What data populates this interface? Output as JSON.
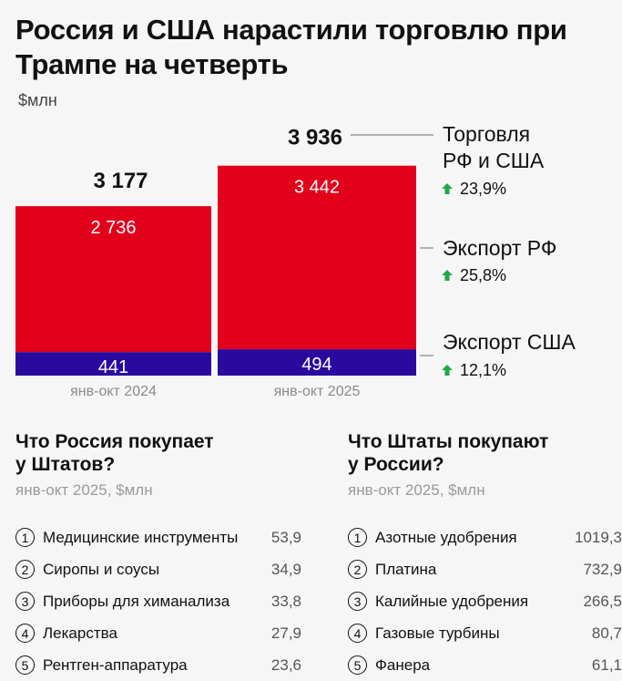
{
  "header": {
    "title": "Россия и США нарастили торговлю при Трампе на четверть",
    "unit": "$млн"
  },
  "chart_data": {
    "type": "bar",
    "stacked": true,
    "categories": [
      "янв-окт 2024",
      "янв-окт 2025"
    ],
    "totals": [
      3177,
      3936
    ],
    "total_labels": [
      "3 177",
      "3 936"
    ],
    "series": [
      {
        "name": "Экспорт РФ",
        "values": [
          2736,
          3442
        ],
        "labels": [
          "2 736",
          "3 442"
        ],
        "color": "#e2001a",
        "change": "25,8%"
      },
      {
        "name": "Экспорт США",
        "values": [
          441,
          494
        ],
        "labels": [
          "441",
          "494"
        ],
        "color": "#2a0a9e",
        "change": "12,1%"
      }
    ],
    "legend": [
      {
        "name": "Торговля РФ и США",
        "lines": [
          "Торговля",
          "РФ и США"
        ],
        "change": "23,9%"
      },
      {
        "name": "Экспорт РФ",
        "lines": [
          "Экспорт РФ"
        ],
        "change": "25,8%"
      },
      {
        "name": "Экспорт США",
        "lines": [
          "Экспорт США"
        ],
        "change": "12,1%"
      }
    ],
    "unit": "$млн",
    "ylim": [
      0,
      4200
    ],
    "arrow_color": "#1fa84a"
  },
  "tables": {
    "left": {
      "title_lines": [
        "Что Россия покупает",
        "у Штатов?"
      ],
      "subtitle": "янв-окт 2025, $млн",
      "rows": [
        {
          "n": "1",
          "name": "Медицинские инструменты",
          "value": "53,9"
        },
        {
          "n": "2",
          "name": "Сиропы и соусы",
          "value": "34,9"
        },
        {
          "n": "3",
          "name": "Приборы для химанализа",
          "value": "33,8"
        },
        {
          "n": "4",
          "name": "Лекарства",
          "value": "27,9"
        },
        {
          "n": "5",
          "name": "Рентген-аппаратура",
          "value": "23,6"
        }
      ]
    },
    "right": {
      "title_lines": [
        "Что Штаты покупают",
        "у России?"
      ],
      "subtitle": "янв-окт 2025, $млн",
      "rows": [
        {
          "n": "1",
          "name": "Азотные удобрения",
          "value": "1019,3"
        },
        {
          "n": "2",
          "name": "Платина",
          "value": "732,9"
        },
        {
          "n": "3",
          "name": "Калийные удобрения",
          "value": "266,5"
        },
        {
          "n": "4",
          "name": "Газовые турбины",
          "value": "80,7"
        },
        {
          "n": "5",
          "name": "Фанера",
          "value": "61,1"
        }
      ]
    }
  }
}
